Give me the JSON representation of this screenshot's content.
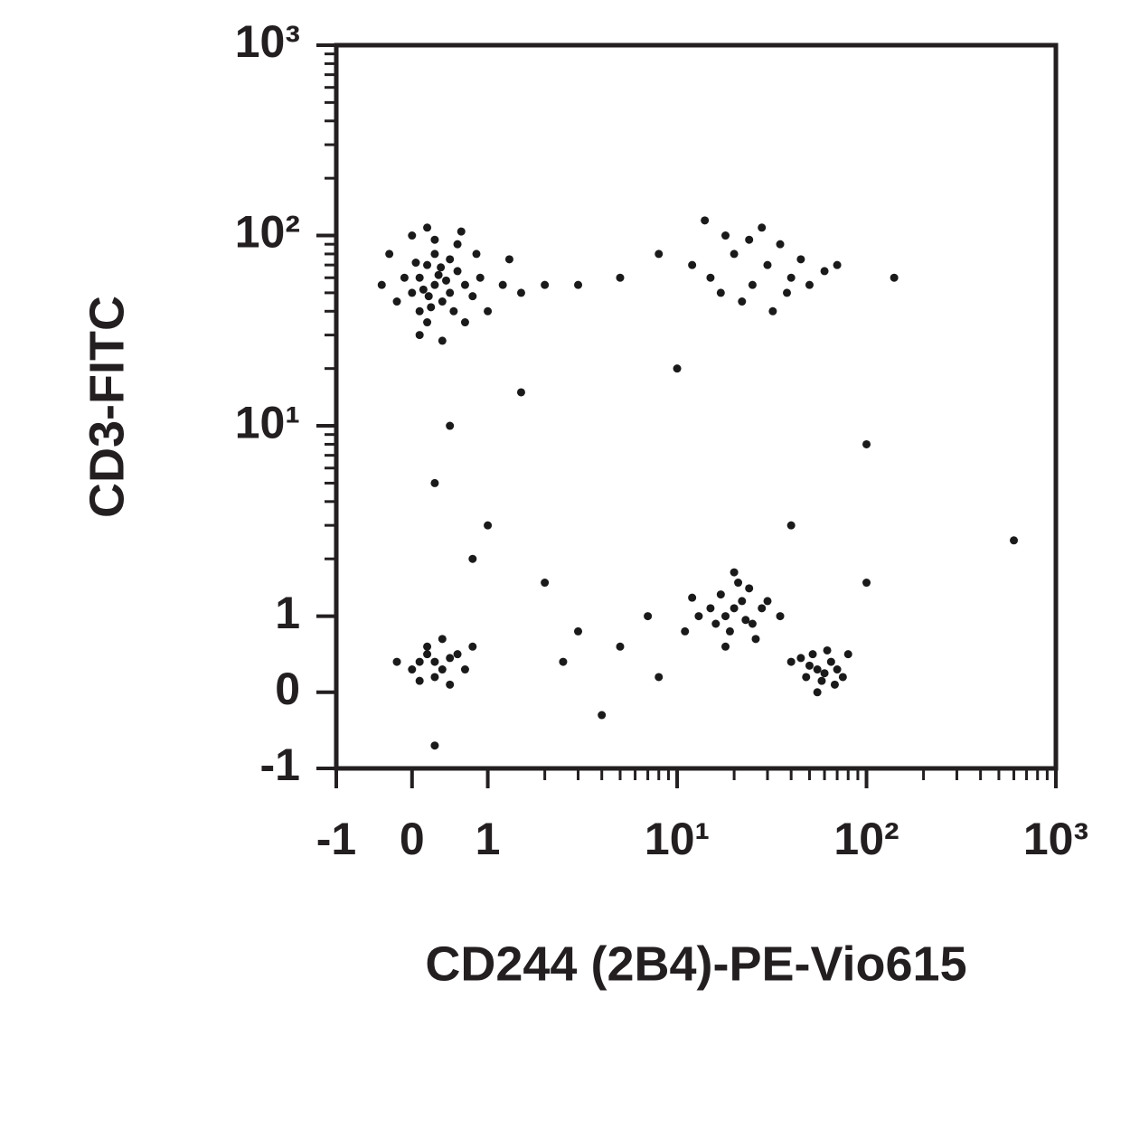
{
  "chart_data": {
    "type": "scatter",
    "scale": "biexponential",
    "x_label": "CD244 (2B4)-PE-Vio615",
    "y_label": "CD3-FITC",
    "color": "#1a1a1a",
    "xlim": [
      -1,
      1000
    ],
    "ylim": [
      -1,
      1000
    ],
    "xticks": [
      -1,
      0,
      1,
      {
        "value": 10,
        "label": "10¹"
      },
      {
        "value": 100,
        "label": "10²"
      },
      {
        "value": 1000,
        "label": "10³"
      }
    ],
    "yticks": [
      -1,
      0,
      1,
      {
        "value": 10,
        "label": "10¹"
      },
      {
        "value": 100,
        "label": "10²"
      },
      {
        "value": 1000,
        "label": "10³"
      }
    ],
    "minor_ticks": [
      2,
      3,
      4,
      5,
      6,
      7,
      8,
      9,
      20,
      30,
      40,
      50,
      60,
      70,
      80,
      90,
      200,
      300,
      400,
      500,
      600,
      700,
      800,
      900
    ],
    "x": [
      0.3,
      0.1,
      0.5,
      0.2,
      0.4,
      0.0,
      0.6,
      0.3,
      0.1,
      0.7,
      -0.1,
      0.2,
      0.5,
      0.8,
      0.35,
      0.15,
      0.45,
      0.25,
      0.55,
      0.05,
      -0.2,
      0.9,
      1.2,
      1.5,
      0.3,
      0.6,
      -0.3,
      0.1,
      0.4,
      0.7,
      1.0,
      2,
      -0.4,
      0.2,
      0.0,
      0.65,
      1.3,
      0.85,
      0.38,
      0.22,
      15,
      20,
      25,
      30,
      18,
      40,
      35,
      22,
      12,
      28,
      45,
      50,
      17,
      32,
      60,
      24,
      38,
      8,
      5,
      3,
      70,
      14,
      0.3,
      0.2,
      0.4,
      0.1,
      0.5,
      0.3,
      0.2,
      0.0,
      0.6,
      -0.2,
      0.7,
      0.4,
      0.1,
      0.8,
      0.5,
      20,
      18,
      22,
      15,
      25,
      17,
      19,
      24,
      13,
      28,
      21,
      16,
      30,
      12,
      23,
      11,
      35,
      20,
      18,
      26,
      55,
      50,
      60,
      48,
      65,
      52,
      58,
      45,
      70,
      62,
      40,
      75,
      55,
      80,
      68,
      0.5,
      0.3,
      1.0,
      2,
      3,
      5,
      7,
      0.8,
      1.5,
      10,
      40,
      100,
      600,
      2.5,
      0.3,
      4,
      8,
      100,
      140
    ],
    "y": [
      55,
      60,
      50,
      70,
      45,
      50,
      65,
      80,
      40,
      55,
      60,
      35,
      75,
      48,
      62,
      52,
      58,
      42,
      40,
      72,
      45,
      60,
      55,
      50,
      95,
      90,
      80,
      30,
      28,
      35,
      40,
      55,
      55,
      110,
      100,
      105,
      75,
      80,
      68,
      48,
      60,
      80,
      55,
      70,
      100,
      60,
      90,
      45,
      70,
      110,
      75,
      55,
      50,
      40,
      65,
      95,
      50,
      80,
      60,
      55,
      70,
      120,
      0.4,
      0.5,
      0.3,
      0.4,
      0.45,
      0.2,
      0.6,
      0.3,
      0.5,
      0.4,
      0.3,
      0.7,
      0.15,
      0.6,
      0.1,
      1.1,
      1.0,
      1.2,
      1.1,
      0.9,
      1.3,
      0.8,
      1.4,
      1.0,
      1.1,
      1.5,
      0.9,
      1.2,
      1.25,
      0.95,
      0.8,
      1.0,
      1.7,
      0.6,
      0.7,
      0.3,
      0.35,
      0.25,
      0.2,
      0.4,
      0.5,
      0.15,
      0.45,
      0.3,
      0.55,
      0.4,
      0.2,
      0.0,
      0.5,
      0.1,
      10,
      5,
      3,
      1.5,
      0.8,
      0.6,
      1.0,
      2,
      15,
      20,
      3,
      8,
      2.5,
      0.4,
      -0.7,
      -0.3,
      0.2,
      1.5,
      60
    ]
  }
}
